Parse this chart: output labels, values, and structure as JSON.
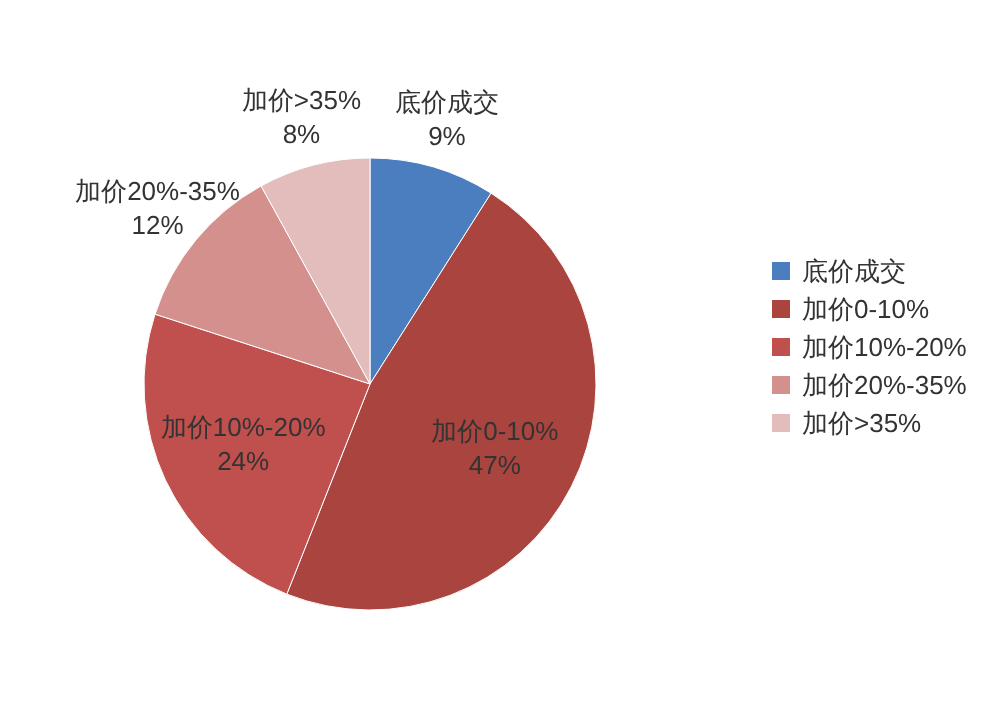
{
  "chart_data": {
    "type": "pie",
    "categories": [
      "底价成交",
      "加价0-10%",
      "加价10%-20%",
      "加价20%-35%",
      "加价>35%"
    ],
    "values": [
      9,
      47,
      24,
      12,
      8
    ],
    "colors": [
      "#4a7ebf",
      "#a9443f",
      "#c0504d",
      "#d4908d",
      "#e3bcbc"
    ],
    "value_labels": [
      "9%",
      "47%",
      "24%",
      "12%",
      "8%"
    ],
    "legend": "right"
  }
}
